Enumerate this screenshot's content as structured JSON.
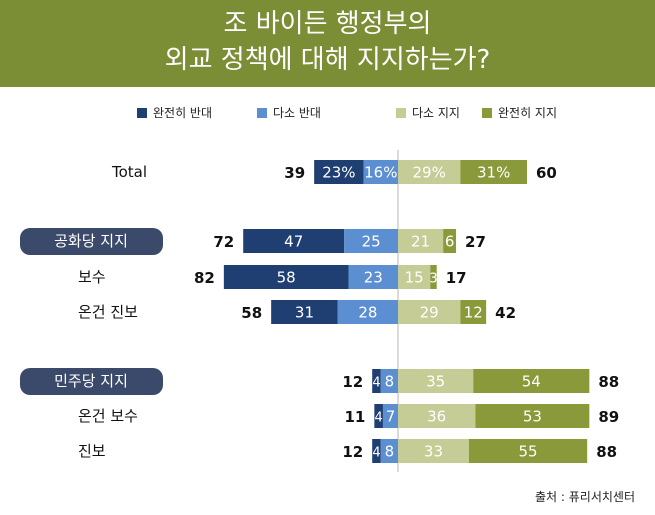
{
  "header": {
    "title_line1": "조 바이든 행정부의",
    "title_line2": "외교 정책에 대해 지지하는가?"
  },
  "legend": [
    {
      "label": "완전히 반대",
      "color": "#1f3f73"
    },
    {
      "label": "다소 반대",
      "color": "#5b8fd1"
    },
    {
      "label": "다소 지지",
      "color": "#c5cc96"
    },
    {
      "label": "완전히 지지",
      "color": "#8a9a3a"
    }
  ],
  "source": "출처 : 퓨리서치센터",
  "chart_data": {
    "type": "bar",
    "stacked": "diverging",
    "series": [
      {
        "name": "완전히 반대",
        "color": "#1f3f73",
        "side": "left"
      },
      {
        "name": "다소 반대",
        "color": "#5b8fd1",
        "side": "left"
      },
      {
        "name": "다소 지지",
        "color": "#c5cc96",
        "side": "right"
      },
      {
        "name": "완전히 지지",
        "color": "#8a9a3a",
        "side": "right"
      }
    ],
    "rows": [
      {
        "label": "Total",
        "group_header": false,
        "strong_oppose": 23,
        "some_oppose": 16,
        "some_support": 29,
        "strong_support": 31,
        "oppose_total": 39,
        "support_total": 60,
        "labels": [
          "23%",
          "16%",
          "29%",
          "31%"
        ]
      },
      {
        "label": "공화당 지지",
        "group_header": true,
        "strong_oppose": 47,
        "some_oppose": 25,
        "some_support": 21,
        "strong_support": 6,
        "oppose_total": 72,
        "support_total": 27,
        "labels": [
          "47",
          "25",
          "21",
          "6"
        ]
      },
      {
        "label": "보수",
        "group_header": false,
        "strong_oppose": 58,
        "some_oppose": 23,
        "some_support": 15,
        "strong_support": 3,
        "oppose_total": 82,
        "support_total": 17,
        "labels": [
          "58",
          "23",
          "15",
          "3"
        ]
      },
      {
        "label": "온건 진보",
        "group_header": false,
        "strong_oppose": 31,
        "some_oppose": 28,
        "some_support": 29,
        "strong_support": 12,
        "oppose_total": 58,
        "support_total": 42,
        "labels": [
          "31",
          "28",
          "29",
          "12"
        ]
      },
      {
        "label": "민주당 지지",
        "group_header": true,
        "strong_oppose": 4,
        "some_oppose": 8,
        "some_support": 35,
        "strong_support": 54,
        "oppose_total": 12,
        "support_total": 88,
        "labels": [
          "4",
          "8",
          "35",
          "54"
        ]
      },
      {
        "label": "온건 보수",
        "group_header": false,
        "strong_oppose": 4,
        "some_oppose": 7,
        "some_support": 36,
        "strong_support": 53,
        "oppose_total": 11,
        "support_total": 89,
        "labels": [
          "4",
          "7",
          "36",
          "53"
        ]
      },
      {
        "label": "진보",
        "group_header": false,
        "strong_oppose": 4,
        "some_oppose": 8,
        "some_support": 33,
        "strong_support": 55,
        "oppose_total": 12,
        "support_total": 88,
        "labels": [
          "4",
          "8",
          "33",
          "55"
        ]
      }
    ]
  }
}
